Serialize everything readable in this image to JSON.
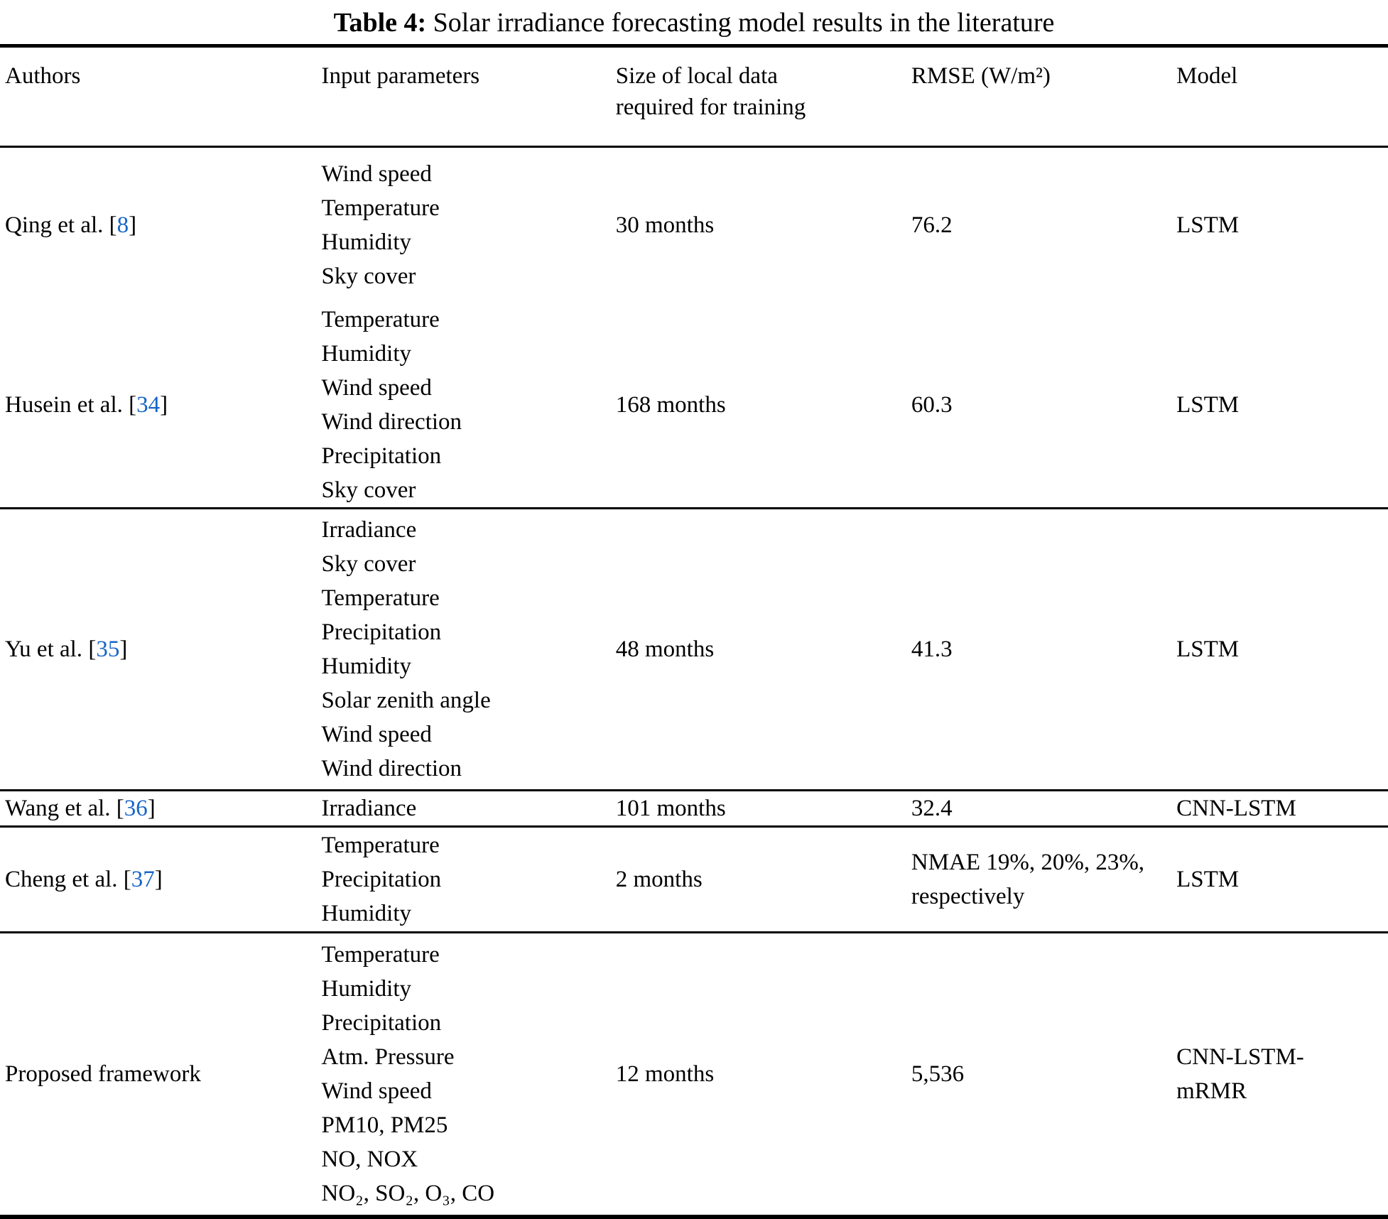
{
  "caption": {
    "label": "Table 4:",
    "text": " Solar irradiance forecasting model results in the literature"
  },
  "columns": {
    "authors": "Authors",
    "input_parameters": "Input parameters",
    "size": "Size of local data required for training",
    "rmse": "RMSE (W/m²)",
    "model": "Model"
  },
  "accent_color": "#1766c8",
  "rows": [
    {
      "author": "Qing et al.",
      "cite_open": " [",
      "cite": "8",
      "cite_close": "]",
      "params": [
        "Wind speed",
        "Temperature",
        "Humidity",
        "Sky cover"
      ],
      "size": "30 months",
      "rmse": "76.2",
      "model": "LSTM"
    },
    {
      "author": "Husein et al.",
      "cite_open": " [",
      "cite": "34",
      "cite_close": "]",
      "params": [
        "Temperature",
        "Humidity",
        "Wind speed",
        "Wind direction",
        "Precipitation",
        "Sky cover"
      ],
      "size": "168 months",
      "rmse": "60.3",
      "model": "LSTM"
    },
    {
      "author": "Yu et al.",
      "cite_open": " [",
      "cite": "35",
      "cite_close": "]",
      "params": [
        "Irradiance",
        "Sky cover",
        "Temperature",
        "Precipitation",
        "Humidity",
        "Solar zenith angle",
        "Wind speed",
        "Wind direction"
      ],
      "size": "48 months",
      "rmse": "41.3",
      "model": "LSTM"
    },
    {
      "author": "Wang et al.",
      "cite_open": " [",
      "cite": "36",
      "cite_close": "]",
      "params": [
        "Irradiance"
      ],
      "size": "101 months",
      "rmse": "32.4",
      "model": "CNN-LSTM"
    },
    {
      "author": "Cheng et al.",
      "cite_open": " [",
      "cite": "37",
      "cite_close": "]",
      "params": [
        "Temperature",
        "Precipitation",
        "Humidity"
      ],
      "size": "2 months",
      "rmse": "NMAE 19%, 20%, 23%, respectively",
      "model": "LSTM"
    },
    {
      "author": "Proposed framework",
      "cite_open": "",
      "cite": "",
      "cite_close": "",
      "params": [
        "Temperature",
        "Humidity",
        "Precipitation",
        "Atm. Pressure",
        "Wind speed",
        "PM10, PM25",
        "NO, NOX",
        "NO₂, SO₂, O₃, CO"
      ],
      "size": "12 months",
      "rmse": "5,536",
      "model": "CNN-LSTM-mRMR"
    }
  ]
}
